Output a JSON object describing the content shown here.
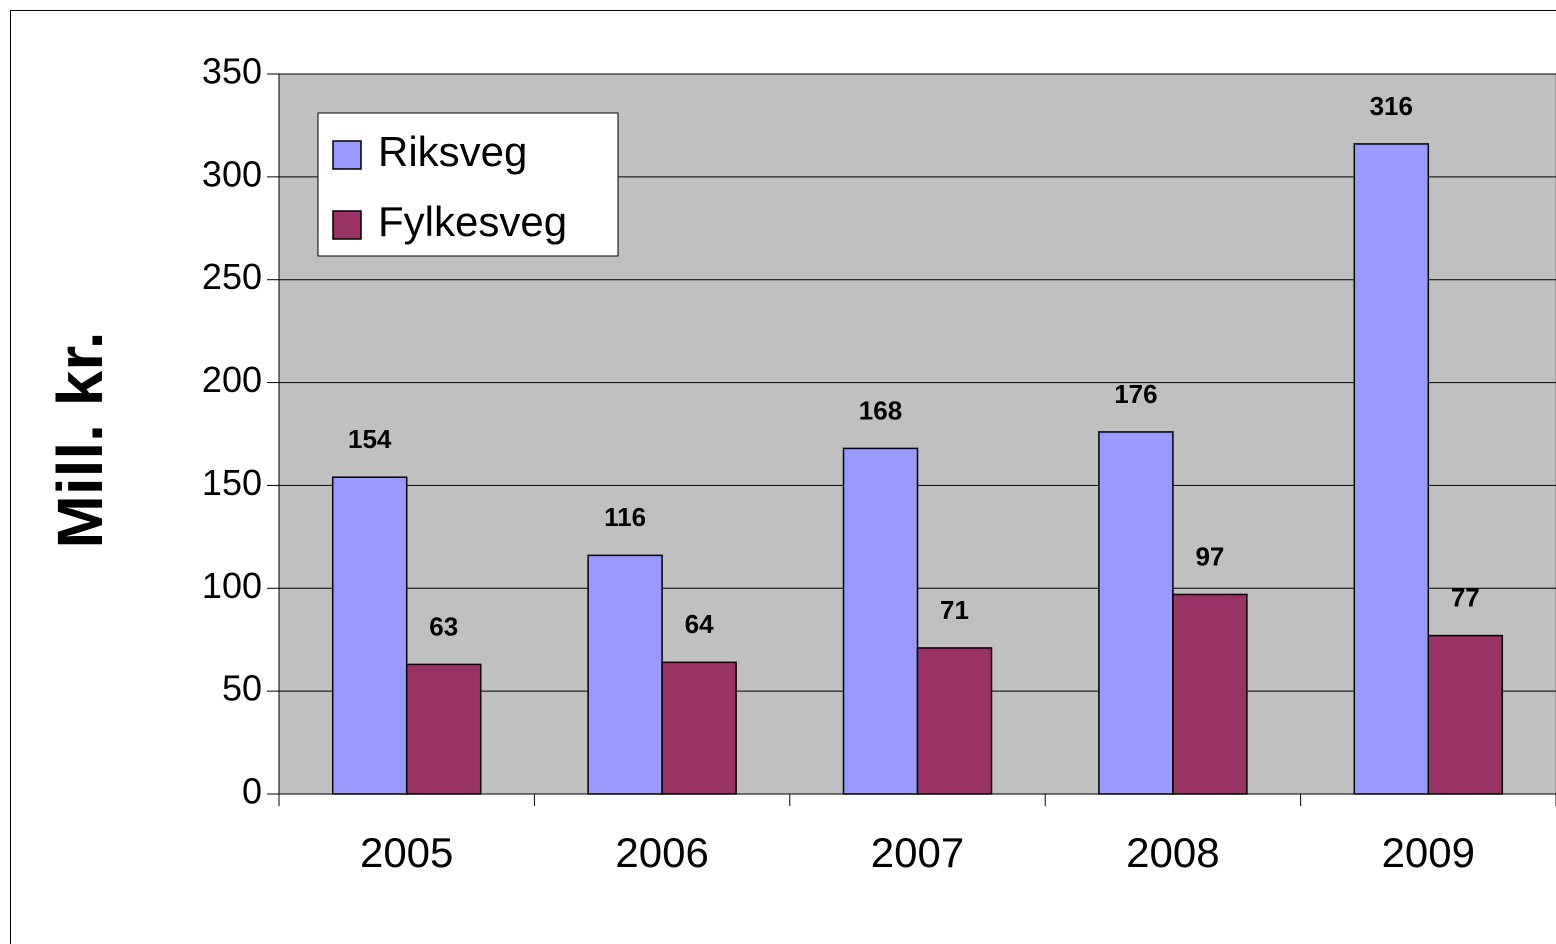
{
  "chart_data": {
    "type": "bar",
    "y_label": "Mill. kr.",
    "categories": [
      "2005",
      "2006",
      "2007",
      "2008",
      "2009"
    ],
    "series": [
      {
        "name": "Riksveg",
        "color": "#9999ff",
        "values": [
          154,
          116,
          168,
          176,
          316
        ]
      },
      {
        "name": "Fylkesveg",
        "color": "#993366",
        "values": [
          63,
          64,
          71,
          97,
          77
        ]
      }
    ],
    "ylim": [
      0,
      350
    ],
    "yticks": [
      0,
      50,
      100,
      150,
      200,
      250,
      300,
      350
    ],
    "grid": true,
    "legend": "top-left"
  }
}
